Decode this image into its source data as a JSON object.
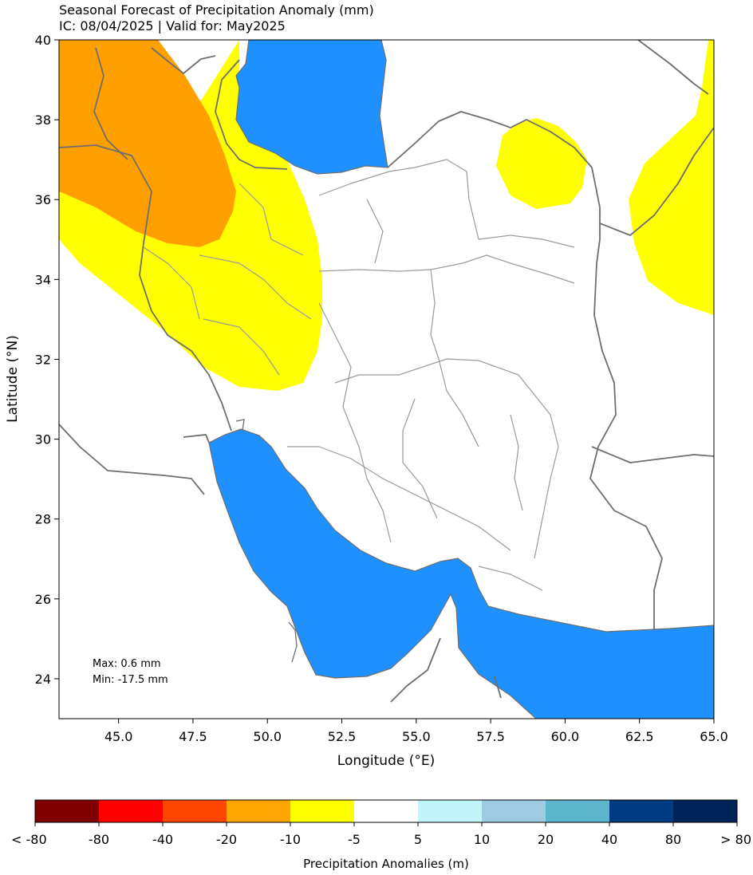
{
  "title": {
    "line1": "Seasonal Forecast of Precipitation Anomaly (mm)",
    "line2": "IC: 08/04/2025 | Valid for: May2025"
  },
  "axes": {
    "xlabel": "Longitude (°E)",
    "ylabel": "Latitude (°N)",
    "xlim": [
      43,
      65
    ],
    "ylim": [
      23,
      40
    ],
    "xticks": [
      45.0,
      47.5,
      50.0,
      52.5,
      55.0,
      57.5,
      60.0,
      62.5,
      65.0
    ],
    "xtick_labels": [
      "45.0",
      "47.5",
      "50.0",
      "52.5",
      "55.0",
      "57.5",
      "60.0",
      "62.5",
      "65.0"
    ],
    "yticks": [
      24,
      26,
      28,
      30,
      32,
      34,
      36,
      38,
      40
    ],
    "ytick_labels": [
      "24",
      "26",
      "28",
      "30",
      "32",
      "34",
      "36",
      "38",
      "40"
    ]
  },
  "stats": {
    "max": "Max: 0.6 mm",
    "min": "Min: -17.5 mm"
  },
  "colorbar": {
    "title": "Precipitation Anomalies (m)",
    "colors": [
      "#7f0000",
      "#ff0000",
      "#ff4500",
      "#ffa500",
      "#ffff00",
      "#ffffff",
      "#c2f5fa",
      "#9dcbe2",
      "#5bb5cc",
      "#003a80",
      "#002459"
    ],
    "labels": [
      "< -80",
      "-80",
      "-40",
      "-20",
      "-10",
      "-5",
      "5",
      "10",
      "20",
      "40",
      "80",
      "> 80"
    ]
  },
  "map_colors": {
    "orange": "#ff9f00",
    "yellow": "#ffff00",
    "water": "#1e90ff",
    "border": "#6e6e6e"
  }
}
